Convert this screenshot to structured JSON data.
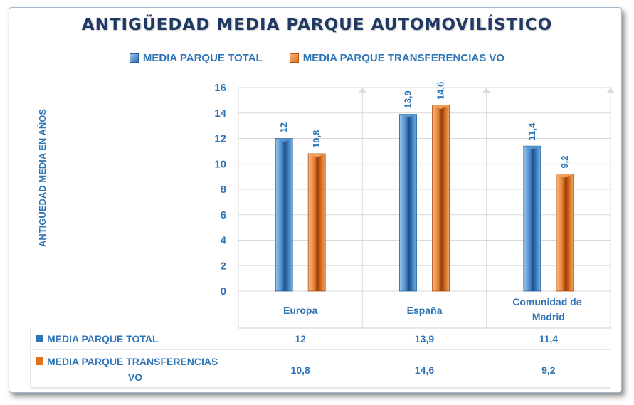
{
  "chart_data": {
    "type": "bar",
    "title": "ANTIGÜEDAD MEDIA PARQUE AUTOMOVILÍSTICO",
    "ylabel": "ANTIGÜEDAD MEDIA EN AÑOS",
    "ylim": [
      0,
      16
    ],
    "yticks": [
      "0",
      "2",
      "4",
      "6",
      "8",
      "10",
      "12",
      "14",
      "16"
    ],
    "categories": [
      "Europa",
      "España",
      "Comunidad de Madrid"
    ],
    "series": [
      {
        "name": "MEDIA PARQUE TOTAL",
        "values": [
          12,
          13.9,
          11.4
        ],
        "labels": [
          "12",
          "13,9",
          "11,4"
        ],
        "color": "#2e75b6"
      },
      {
        "name": "MEDIA PARQUE TRANSFERENCIAS VO",
        "values": [
          10.8,
          14.6,
          9.2
        ],
        "labels": [
          "10,8",
          "14,6",
          "9,2"
        ],
        "color": "#e2711d"
      }
    ],
    "table": {
      "row_labels": [
        "MEDIA PARQUE TOTAL",
        "MEDIA PARQUE TRANSFERENCIAS VO"
      ],
      "rows": [
        [
          "12",
          "13,9",
          "11,4"
        ],
        [
          "10,8",
          "14,6",
          "9,2"
        ]
      ]
    },
    "grid": true,
    "legend": "top"
  }
}
